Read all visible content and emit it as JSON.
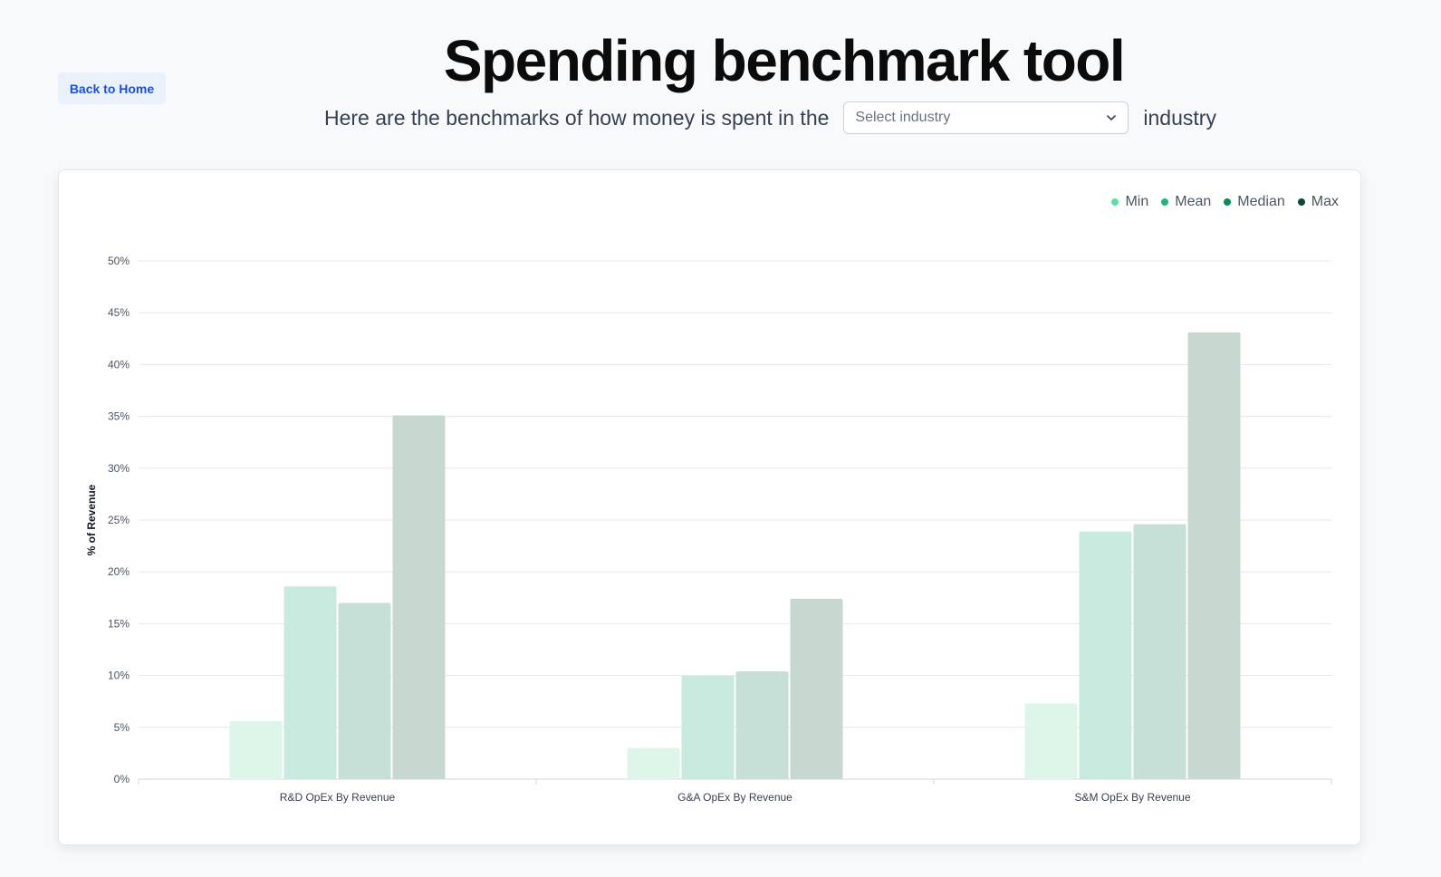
{
  "nav": {
    "back_label": "Back to Home"
  },
  "header": {
    "title": "Spending benchmark tool",
    "subtitle_prefix": "Here are the benchmarks of how money is spent in the",
    "subtitle_suffix": "industry",
    "industry_select": {
      "placeholder": "Select industry",
      "value": ""
    }
  },
  "chart_data": {
    "type": "bar",
    "ylabel": "% of Revenue",
    "ylim": [
      0,
      50
    ],
    "yticks": [
      "0%",
      "5%",
      "10%",
      "15%",
      "20%",
      "25%",
      "30%",
      "35%",
      "40%",
      "45%",
      "50%"
    ],
    "grid": true,
    "legend_position": "top-right",
    "categories": [
      "R&D OpEx By Revenue",
      "G&A OpEx By Revenue",
      "S&M OpEx By Revenue"
    ],
    "series": [
      {
        "name": "Min",
        "values": [
          5.6,
          3.0,
          7.3
        ],
        "bar_color": "#ddf6e9",
        "legend_color": "#5ee0a4"
      },
      {
        "name": "Mean",
        "values": [
          18.6,
          10.0,
          23.9
        ],
        "bar_color": "#c9eadf",
        "legend_color": "#1fb77a"
      },
      {
        "name": "Median",
        "values": [
          17.0,
          10.4,
          24.6
        ],
        "bar_color": "#c6e0d7",
        "legend_color": "#0e8a55"
      },
      {
        "name": "Max",
        "values": [
          35.1,
          17.4,
          43.1
        ],
        "bar_color": "#c6d8d0",
        "legend_color": "#0b4a33"
      }
    ]
  }
}
